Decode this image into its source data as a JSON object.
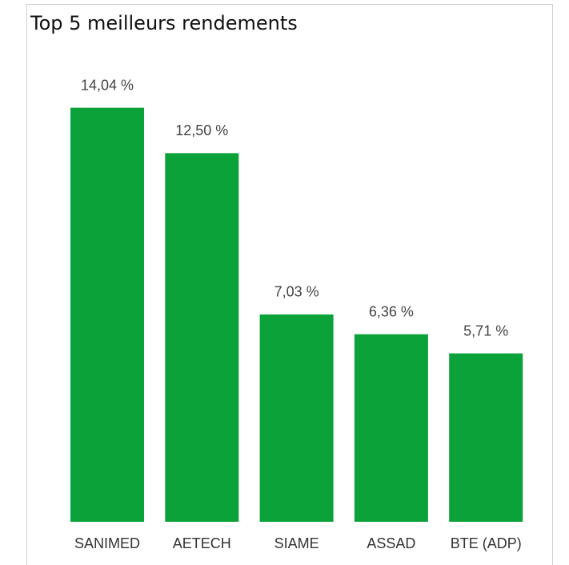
{
  "chart_data": {
    "type": "bar",
    "title": "Top 5 meilleurs rendements",
    "categories": [
      "SANIMED",
      "AETECH",
      "SIAME",
      "ASSAD",
      "BTE (ADP)"
    ],
    "values": [
      14.04,
      12.5,
      7.03,
      6.36,
      5.71
    ],
    "value_labels": [
      "14,04 %",
      "12,50 %",
      "7,03 %",
      "6,36 %",
      "5,71 %"
    ],
    "color": "#0ca23a"
  }
}
